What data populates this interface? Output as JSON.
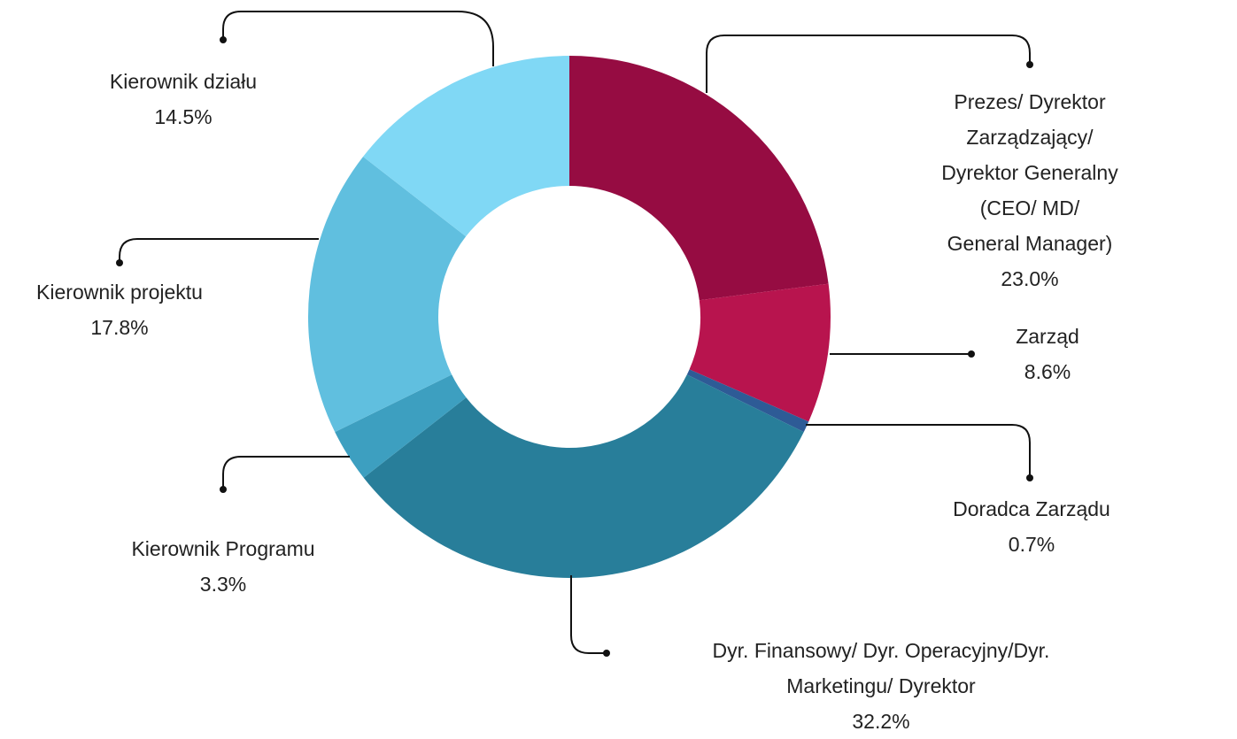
{
  "chart_data": {
    "type": "donut",
    "categories": [
      "Prezes/ Dyrektor Zarządzający/\nDyrektor Generalny (CEO/ MD/\nGeneral Manager)",
      "Zarząd",
      "Doradca Zarządu",
      "Dyr. Finansowy/ Dyr. Operacyjny/Dyr.\nMarketingu/ Dyrektor",
      "Kierownik Programu",
      "Kierownik projektu",
      "Kierownik działu"
    ],
    "values": [
      23.0,
      8.6,
      0.7,
      32.2,
      3.3,
      17.8,
      14.5
    ],
    "value_labels": [
      "23.0%",
      "8.6%",
      "0.7%",
      "32.2%",
      "3.3%",
      "17.8%",
      "14.5%"
    ],
    "colors": [
      "#960c42",
      "#b8144e",
      "#2e5b96",
      "#287e9a",
      "#3d9fc0",
      "#60bfdf",
      "#80d8f5"
    ]
  }
}
